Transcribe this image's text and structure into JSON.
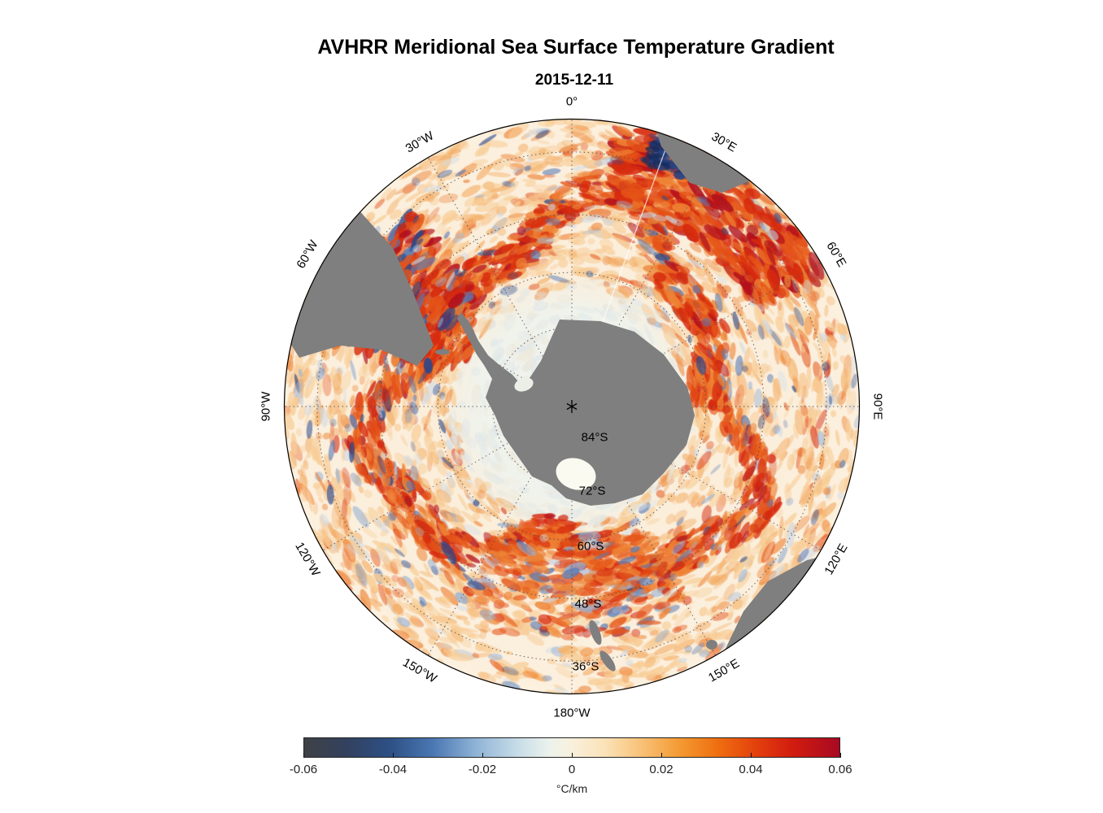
{
  "title": "AVHRR Meridional Sea Surface Temperature Gradient",
  "date": "2015-12-11",
  "map": {
    "lon_labels": [
      "0°",
      "30°E",
      "60°E",
      "90°E",
      "120°E",
      "150°E",
      "180°W",
      "150°W",
      "120°W",
      "90°W",
      "60°W",
      "30°W"
    ],
    "lat_labels": [
      "84°S",
      "72°S",
      "60°S",
      "48°S",
      "36°S"
    ]
  },
  "colorbar": {
    "ticks": [
      "-0.06",
      "-0.04",
      "-0.02",
      "0",
      "0.02",
      "0.04",
      "0.06"
    ],
    "label": "°C/km"
  },
  "chart_data": {
    "type": "heatmap",
    "title": "AVHRR Meridional Sea Surface Temperature Gradient",
    "subtitle": "2015-12-11",
    "projection": "south polar stereographic",
    "variable": "Meridional sea surface temperature gradient",
    "units": "°C/km",
    "value_range": [
      -0.06,
      0.06
    ],
    "colorbar_ticks": [
      -0.06,
      -0.04,
      -0.02,
      0,
      0.02,
      0.04,
      0.06
    ],
    "colormap_stops": [
      {
        "pos": 0.0,
        "color": "#3f4145"
      },
      {
        "pos": 0.08,
        "color": "#33415f"
      },
      {
        "pos": 0.16,
        "color": "#2d5085"
      },
      {
        "pos": 0.24,
        "color": "#4a77b2"
      },
      {
        "pos": 0.32,
        "color": "#8fb3d6"
      },
      {
        "pos": 0.4,
        "color": "#c8dde8"
      },
      {
        "pos": 0.46,
        "color": "#edf3ec"
      },
      {
        "pos": 0.5,
        "color": "#f9f0dc"
      },
      {
        "pos": 0.56,
        "color": "#fbe3b9"
      },
      {
        "pos": 0.63,
        "color": "#f8c177"
      },
      {
        "pos": 0.7,
        "color": "#f49b33"
      },
      {
        "pos": 0.77,
        "color": "#ef7011"
      },
      {
        "pos": 0.84,
        "color": "#e4430d"
      },
      {
        "pos": 0.91,
        "color": "#d21d0e"
      },
      {
        "pos": 1.0,
        "color": "#a80923"
      }
    ],
    "graticule": {
      "longitude_lines_every_deg": 30,
      "longitude_labels": [
        "0°",
        "30°E",
        "60°E",
        "90°E",
        "120°E",
        "150°E",
        "180°W",
        "150°W",
        "120°W",
        "90°W",
        "60°W",
        "30°W"
      ],
      "latitude_circle_labels": [
        "84°S",
        "72°S",
        "60°S",
        "48°S",
        "36°S"
      ],
      "style": "dotted"
    },
    "land_color": "#7f7f7f",
    "ocean_background_color": "#fcefdc",
    "visible_landmasses": [
      "Antarctica",
      "South America (Patagonia)",
      "southern Africa",
      "Australia",
      "Tasmania",
      "New Zealand"
    ]
  }
}
